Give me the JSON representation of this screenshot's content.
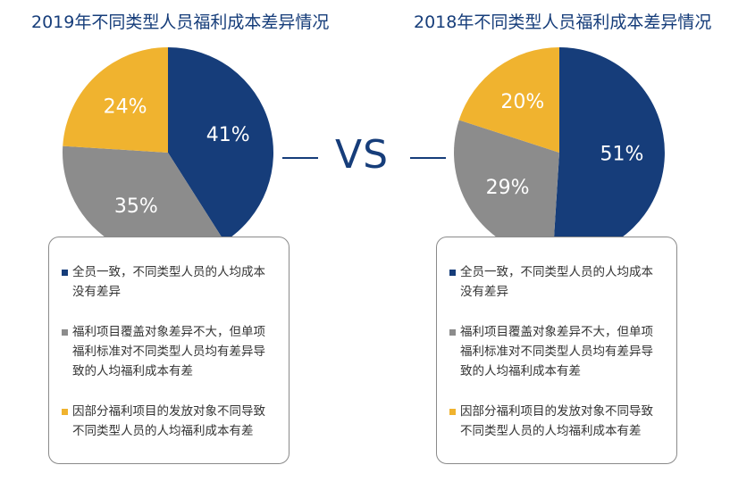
{
  "vs_label": "VS",
  "colors": {
    "blue": "#163d7a",
    "gray": "#8c8c8c",
    "yellow": "#f0b32f"
  },
  "legend_items": [
    {
      "text": "全员一致，不同类型人员的人均成本没有差异",
      "color": "#163d7a"
    },
    {
      "text": "福利项目覆盖对象差异不大，但单项福利标准对不同类型人员均有差异导致的人均福利成本有差",
      "color": "#8c8c8c"
    },
    {
      "text": "因部分福利项目的发放对象不同导致不同类型人员的人均福利成本有差",
      "color": "#f0b32f"
    }
  ],
  "chart_data": [
    {
      "type": "pie",
      "title": "2019年不同类型人员福利成本差异情况",
      "slices": [
        {
          "label": "全员一致，不同类型人员的人均成本没有差异",
          "value": 41,
          "value_label": "41%",
          "color": "#163d7a"
        },
        {
          "label": "福利项目覆盖对象差异不大，但单项福利标准对不同类型人员均有差异导致的人均福利成本有差",
          "value": 35,
          "value_label": "35%",
          "color": "#8c8c8c"
        },
        {
          "label": "因部分福利项目的发放对象不同导致不同类型人员的人均福利成本有差",
          "value": 24,
          "value_label": "24%",
          "color": "#f0b32f"
        }
      ]
    },
    {
      "type": "pie",
      "title": "2018年不同类型人员福利成本差异情况",
      "slices": [
        {
          "label": "全员一致，不同类型人员的人均成本没有差异",
          "value": 51,
          "value_label": "51%",
          "color": "#163d7a"
        },
        {
          "label": "福利项目覆盖对象差异不大，但单项福利标准对不同类型人员均有差异导致的人均福利成本有差",
          "value": 29,
          "value_label": "29%",
          "color": "#8c8c8c"
        },
        {
          "label": "因部分福利项目的发放对象不同导致不同类型人员的人均福利成本有差",
          "value": 20,
          "value_label": "20%",
          "color": "#f0b32f"
        }
      ]
    }
  ]
}
